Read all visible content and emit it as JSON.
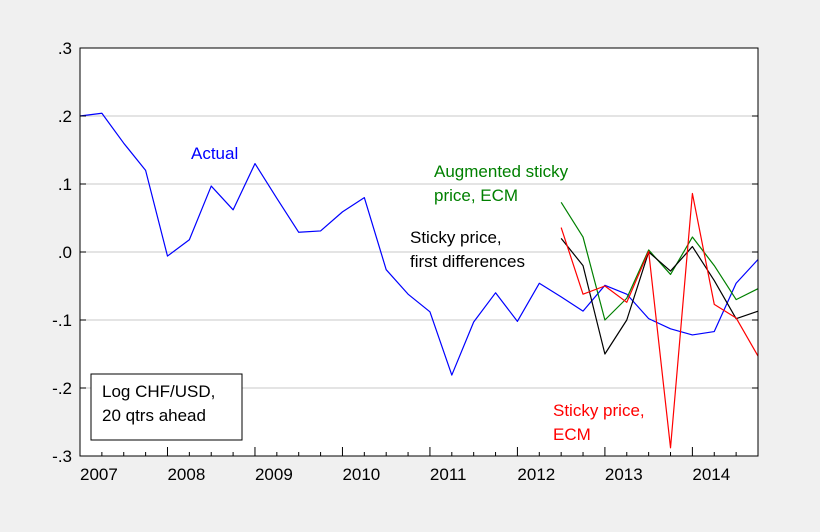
{
  "chart_data": {
    "type": "line",
    "title": "",
    "xlabel": "",
    "ylabel": "",
    "xlim": [
      2007.0,
      2014.75
    ],
    "ylim": [
      -0.3,
      0.3
    ],
    "x_ticks": [
      2007,
      2008,
      2009,
      2010,
      2011,
      2012,
      2013,
      2014
    ],
    "y_ticks": [
      {
        "value": 0.3,
        "label": ".3"
      },
      {
        "value": 0.2,
        "label": ".2"
      },
      {
        "value": 0.1,
        "label": ".1"
      },
      {
        "value": 0.0,
        "label": ".0"
      },
      {
        "value": -0.1,
        "label": "-.1"
      },
      {
        "value": -0.2,
        "label": "-.2"
      },
      {
        "value": -0.3,
        "label": "-.3"
      }
    ],
    "grid": true,
    "series": [
      {
        "name": "Actual",
        "color": "#0000ff",
        "x": [
          2007.0,
          2007.25,
          2007.5,
          2007.75,
          2008.0,
          2008.25,
          2008.5,
          2008.75,
          2009.0,
          2009.25,
          2009.5,
          2009.75,
          2010.0,
          2010.25,
          2010.5,
          2010.75,
          2011.0,
          2011.25,
          2011.5,
          2011.75,
          2012.0,
          2012.25,
          2012.5,
          2012.75,
          2013.0,
          2013.25,
          2013.5,
          2013.75,
          2014.0,
          2014.25,
          2014.5,
          2014.75
        ],
        "y": [
          0.2,
          0.204,
          0.16,
          0.12,
          -0.006,
          0.018,
          0.097,
          0.062,
          0.13,
          0.079,
          0.029,
          0.031,
          0.059,
          0.08,
          -0.026,
          -0.062,
          -0.088,
          -0.181,
          -0.103,
          -0.06,
          -0.102,
          -0.046,
          -0.066,
          -0.087,
          -0.049,
          -0.062,
          -0.098,
          -0.113,
          -0.122,
          -0.117,
          -0.046,
          -0.011
        ]
      },
      {
        "name": "Augmented sticky price, ECM",
        "color": "#008000",
        "x": [
          2012.5,
          2012.75,
          2013.0,
          2013.25,
          2013.5,
          2013.75,
          2014.0,
          2014.25,
          2014.5,
          2014.75
        ],
        "y": [
          0.073,
          0.022,
          -0.1,
          -0.068,
          0.003,
          -0.033,
          0.022,
          -0.02,
          -0.07,
          -0.054
        ]
      },
      {
        "name": "Sticky price, first differences",
        "color": "#000000",
        "x": [
          2012.5,
          2012.75,
          2013.0,
          2013.25,
          2013.5,
          2013.75,
          2014.0,
          2014.25,
          2014.5,
          2014.75
        ],
        "y": [
          0.02,
          -0.02,
          -0.15,
          -0.1,
          0.0,
          -0.028,
          0.008,
          -0.042,
          -0.098,
          -0.087
        ]
      },
      {
        "name": "Sticky price, ECM",
        "color": "#ff0000",
        "x": [
          2012.5,
          2012.75,
          2013.0,
          2013.25,
          2013.5,
          2013.75,
          2014.0,
          2014.25,
          2014.5,
          2014.75
        ],
        "y": [
          0.036,
          -0.062,
          -0.05,
          -0.074,
          0.001,
          -0.288,
          0.086,
          -0.077,
          -0.097,
          -0.153
        ]
      }
    ],
    "annotations": [
      {
        "lines": [
          "Actual"
        ],
        "color": "#0000ff"
      },
      {
        "lines": [
          "Augmented sticky",
          "price, ECM"
        ],
        "color": "#008000"
      },
      {
        "lines": [
          "Sticky price,",
          "first differences"
        ],
        "color": "#000000"
      },
      {
        "lines": [
          "Sticky price,",
          "ECM"
        ],
        "color": "#ff0000"
      }
    ],
    "note_box": {
      "lines": [
        "Log CHF/USD,",
        "20 qtrs ahead"
      ]
    }
  }
}
